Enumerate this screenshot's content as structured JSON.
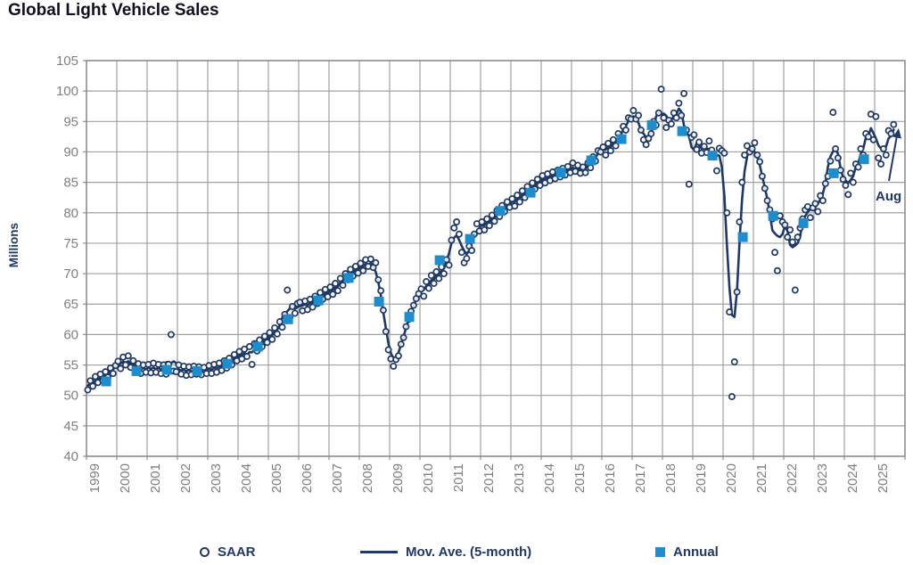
{
  "title": "Global Light Vehicle Sales",
  "y_axis": {
    "title": "Millions",
    "tick_labels": [
      "105",
      "100",
      "95",
      "90",
      "85",
      "80",
      "75",
      "70",
      "65",
      "60",
      "55",
      "50",
      "45",
      "40"
    ]
  },
  "x_axis": {
    "tick_labels": [
      "1999",
      "2000",
      "2001",
      "2002",
      "2003",
      "2004",
      "2005",
      "2006",
      "2007",
      "2008",
      "2009",
      "2010",
      "2011",
      "2012",
      "2013",
      "2014",
      "2015",
      "2016",
      "2017",
      "2018",
      "2019",
      "2020",
      "2021",
      "2022",
      "2023",
      "2024",
      "2025"
    ]
  },
  "legend": [
    {
      "label": "SAAR",
      "marker": "circle"
    },
    {
      "label": "Mov. Ave. (5-month)",
      "marker": "line"
    },
    {
      "label": "Annual",
      "marker": "square"
    }
  ],
  "annotation": {
    "text": "Aug"
  },
  "colors": {
    "navy": "#1F3864",
    "annual_blue": "#1F8DCB",
    "grid": "#A0A0A0",
    "tick_text": "#7F7F7F",
    "title_text": "#101020"
  },
  "chart_data": {
    "type": "line",
    "title": "Global Light Vehicle Sales",
    "ylabel": "Millions",
    "ylim": [
      40,
      105
    ],
    "xlim": [
      1999,
      2026
    ],
    "grid": true,
    "legend_position": "bottom",
    "series": [
      {
        "name": "SAAR",
        "type": "scatter",
        "frequency": "monthly",
        "start": "1999-01",
        "end": "2025-08",
        "values": [
          50.9,
          52.4,
          51.5,
          53.1,
          52.1,
          53.5,
          52.4,
          53.9,
          53.0,
          54.5,
          53.6,
          54.9,
          55.6,
          54.4,
          56.3,
          55.0,
          56.5,
          54.6,
          55.7,
          53.8,
          55.2,
          53.6,
          55.0,
          53.8,
          55.1,
          53.7,
          55.3,
          53.8,
          55.1,
          53.6,
          55.0,
          53.5,
          55.1,
          60.0,
          54.0,
          53.9,
          55.0,
          53.5,
          54.8,
          53.3,
          54.7,
          53.4,
          54.8,
          53.5,
          54.7,
          53.4,
          54.6,
          53.6,
          54.9,
          53.6,
          55.1,
          53.8,
          55.3,
          54.1,
          55.7,
          54.5,
          56.1,
          55.0,
          56.7,
          55.7,
          57.2,
          56.0,
          57.6,
          56.4,
          58.0,
          55.1,
          58.5,
          57.3,
          59.1,
          58.0,
          59.7,
          58.7,
          60.3,
          59.2,
          61.1,
          60.1,
          62.1,
          61.2,
          63.3,
          67.3,
          62.8,
          64.6,
          63.5,
          65.1,
          65.3,
          63.9,
          65.5,
          64.1,
          65.8,
          64.5,
          66.3,
          65.1,
          66.9,
          65.8,
          67.4,
          66.2,
          67.8,
          66.6,
          68.4,
          67.2,
          69.2,
          68.1,
          70.0,
          69.0,
          70.7,
          69.6,
          71.2,
          70.1,
          71.7,
          70.5,
          72.3,
          71.2,
          72.4,
          71.0,
          71.8,
          69.0,
          67.2,
          64.0,
          60.5,
          57.5,
          56.0,
          54.8,
          55.9,
          56.5,
          58.4,
          59.5,
          61.3,
          62.5,
          63.8,
          64.8,
          65.9,
          66.7,
          67.5,
          66.3,
          68.7,
          67.6,
          69.7,
          68.4,
          70.3,
          69.2,
          71.1,
          70.0,
          72.3,
          71.4,
          75.5,
          77.5,
          78.5,
          76.5,
          73.5,
          71.8,
          72.5,
          74.5,
          73.8,
          76.5,
          78.2,
          77.0,
          78.5,
          77.2,
          79.0,
          77.9,
          79.6,
          78.6,
          80.4,
          79.4,
          81.2,
          80.2,
          81.8,
          80.9,
          82.3,
          81.1,
          82.9,
          81.8,
          83.6,
          82.5,
          84.3,
          83.2,
          84.9,
          83.9,
          85.5,
          84.5,
          86.1,
          84.9,
          86.4,
          85.3,
          86.7,
          85.6,
          87.0,
          85.9,
          87.3,
          86.2,
          87.6,
          86.6,
          88.2,
          86.8,
          87.8,
          86.5,
          87.5,
          86.6,
          88.2,
          87.4,
          89.2,
          88.5,
          90.2,
          90.0,
          90.8,
          89.5,
          91.4,
          90.2,
          92.0,
          91.0,
          93.0,
          92.2,
          94.2,
          93.6,
          95.6,
          95.4,
          96.8,
          95.4,
          96.0,
          93.6,
          92.0,
          91.2,
          92.2,
          93.0,
          95.0,
          94.4,
          96.4,
          100.3,
          95.6,
          94.0,
          95.2,
          94.6,
          96.4,
          95.6,
          98.0,
          96.0,
          99.6,
          93.6,
          84.7,
          92.4,
          92.8,
          90.4,
          91.6,
          89.8,
          90.9,
          89.9,
          91.8,
          90.3,
          89.4,
          86.9,
          90.6,
          90.2,
          89.8,
          80.0,
          63.7,
          49.8,
          55.5,
          67.0,
          78.5,
          85.0,
          89.5,
          91.0,
          90.0,
          90.5,
          91.5,
          89.5,
          88.4,
          86.0,
          84.0,
          82.0,
          80.5,
          79.0,
          73.5,
          70.5,
          79.5,
          78.5,
          78.0,
          76.0,
          77.2,
          75.2,
          67.3,
          76.0,
          77.5,
          79.0,
          80.5,
          81.0,
          79.2,
          80.8,
          81.5,
          80.2,
          82.8,
          82.0,
          84.8,
          86.0,
          88.5,
          96.5,
          90.5,
          89.0,
          87.0,
          85.5,
          84.5,
          83.0,
          86.5,
          85.0,
          88.0,
          87.5,
          90.5,
          89.5,
          93.0,
          92.5,
          96.2,
          92.0,
          95.8,
          89.0,
          88.0,
          90.5,
          89.5,
          93.5,
          93.0,
          94.5
        ]
      },
      {
        "name": "Mov. Ave. (5-month)",
        "type": "line",
        "derived": "5-month centered moving average of SAAR",
        "window": 5
      },
      {
        "name": "Annual",
        "type": "scatter",
        "marker": "square",
        "years": [
          1999,
          2000,
          2001,
          2002,
          2003,
          2004,
          2005,
          2006,
          2007,
          2008,
          2009,
          2010,
          2011,
          2012,
          2013,
          2014,
          2015,
          2016,
          2017,
          2018,
          2019,
          2020,
          2021,
          2022,
          2023,
          2024
        ],
        "values": [
          52.3,
          54.0,
          54.2,
          54.0,
          55.2,
          58.0,
          62.5,
          65.6,
          69.3,
          65.4,
          62.9,
          72.2,
          75.7,
          80.3,
          83.3,
          86.6,
          88.6,
          92.1,
          94.4,
          93.4,
          89.4,
          76.0,
          79.5,
          78.3,
          86.5,
          88.8
        ]
      }
    ],
    "annotations": [
      {
        "text": "Aug",
        "points_to": "2025-08"
      }
    ]
  }
}
